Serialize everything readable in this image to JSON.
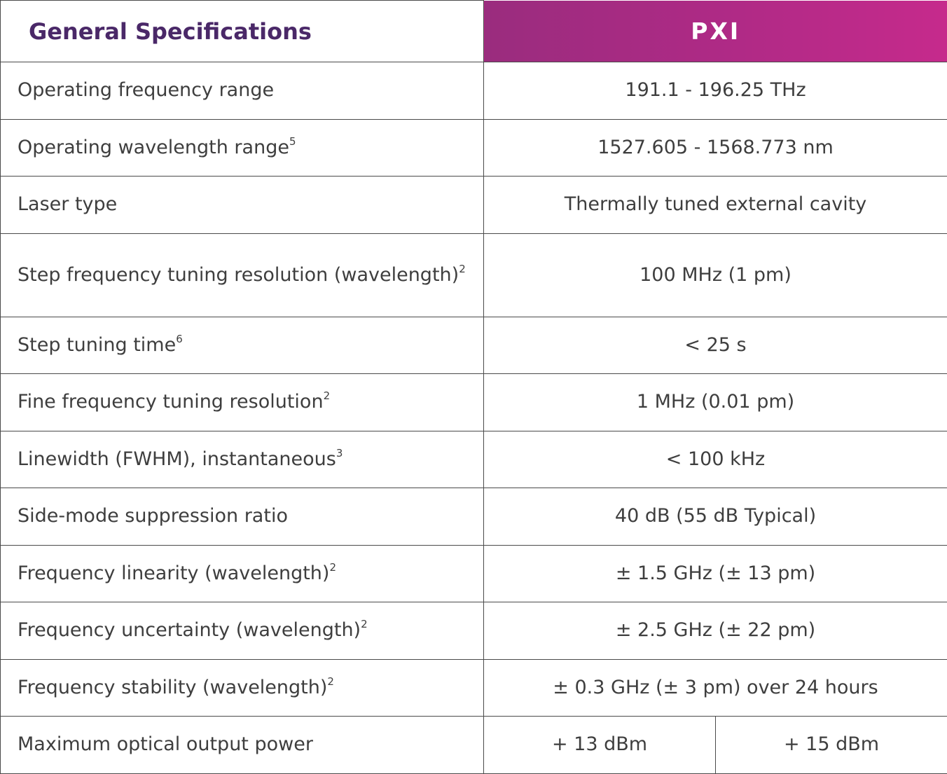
{
  "header": {
    "title": "General Specifications",
    "product": "PXI"
  },
  "rows": [
    {
      "label": "Operating frequency range",
      "sup": "",
      "value": "191.1 - 196.25 THz"
    },
    {
      "label": "Operating wavelength range",
      "sup": "5",
      "value": "1527.605 - 1568.773 nm"
    },
    {
      "label": "Laser type",
      "sup": "",
      "value": "Thermally tuned external cavity"
    },
    {
      "label": "Step frequency tuning resolution (wavelength)",
      "sup": "2",
      "value": "100 MHz (1 pm)"
    },
    {
      "label": "Step tuning time",
      "sup": "6",
      "value": "< 25 s"
    },
    {
      "label": "Fine frequency tuning resolution",
      "sup": "2",
      "value": "1 MHz (0.01 pm)"
    },
    {
      "label": "Linewidth (FWHM), instantaneous",
      "sup": "3",
      "value": "< 100 kHz"
    },
    {
      "label": "Side-mode suppression ratio",
      "sup": "",
      "value": "40 dB (55 dB Typical)"
    },
    {
      "label": "Frequency linearity (wavelength)",
      "sup": "2",
      "value": "± 1.5 GHz (± 13 pm)"
    },
    {
      "label": "Frequency uncertainty (wavelength)",
      "sup": "2",
      "value": "± 2.5 GHz (± 22 pm)"
    },
    {
      "label": "Frequency stability (wavelength)",
      "sup": "2",
      "value": "± 0.3 GHz (± 3 pm) over 24 hours"
    }
  ],
  "last_row": {
    "label": "Maximum optical output power",
    "value_a": "+ 13 dBm",
    "value_b": "+ 15 dBm"
  }
}
